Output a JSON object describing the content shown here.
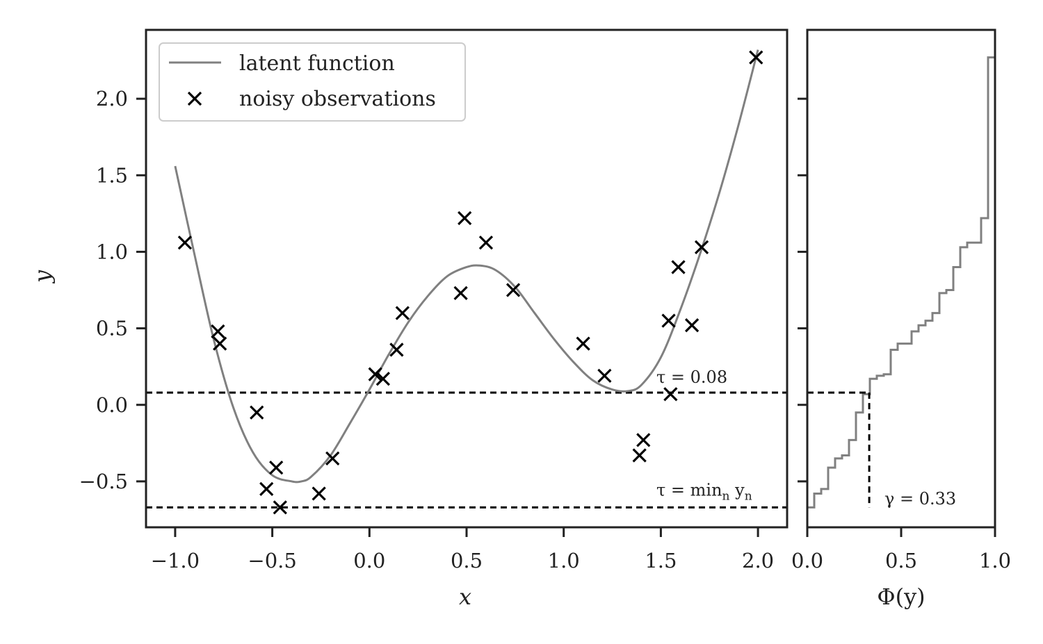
{
  "colors": {
    "latent": "#808080",
    "observations": "#000000",
    "threshold": "#000000",
    "frame": "#222222"
  },
  "chart_data": [
    {
      "type": "scatter",
      "xlabel": "x",
      "ylabel": "y",
      "xlim": [
        -1.15,
        2.15
      ],
      "ylim": [
        -0.8,
        2.45
      ],
      "xticks": [
        -1.0,
        -0.5,
        0.0,
        0.5,
        1.0,
        1.5,
        2.0
      ],
      "xtick_labels": [
        "−1.0",
        "−0.5",
        "0.0",
        "0.5",
        "1.0",
        "1.5",
        "2.0"
      ],
      "yticks": [
        -0.5,
        0.0,
        0.5,
        1.0,
        1.5,
        2.0
      ],
      "ytick_labels": [
        "−0.5",
        "0.0",
        "0.5",
        "1.0",
        "1.5",
        "2.0"
      ],
      "grid": false,
      "legend_position": "top-left",
      "series": [
        {
          "name": "latent function",
          "kind": "line",
          "x": [
            -1.0,
            -0.9,
            -0.8,
            -0.7,
            -0.6,
            -0.5,
            -0.4,
            -0.35,
            -0.3,
            -0.2,
            -0.1,
            0.0,
            0.1,
            0.2,
            0.3,
            0.4,
            0.5,
            0.57,
            0.65,
            0.75,
            0.85,
            0.95,
            1.05,
            1.15,
            1.25,
            1.33,
            1.4,
            1.5,
            1.6,
            1.7,
            1.8,
            1.9,
            2.0
          ],
          "y": [
            1.56,
            0.98,
            0.42,
            -0.02,
            -0.31,
            -0.46,
            -0.5,
            -0.5,
            -0.47,
            -0.33,
            -0.12,
            0.1,
            0.33,
            0.54,
            0.71,
            0.84,
            0.9,
            0.91,
            0.88,
            0.77,
            0.6,
            0.43,
            0.28,
            0.16,
            0.1,
            0.09,
            0.13,
            0.31,
            0.62,
            0.98,
            1.38,
            1.83,
            2.32
          ]
        },
        {
          "name": "noisy observations",
          "kind": "scatter",
          "marker": "x",
          "points": [
            [
              -0.95,
              1.06
            ],
            [
              -0.78,
              0.48
            ],
            [
              -0.77,
              0.4
            ],
            [
              -0.58,
              -0.05
            ],
            [
              -0.53,
              -0.55
            ],
            [
              -0.48,
              -0.41
            ],
            [
              -0.46,
              -0.67
            ],
            [
              -0.26,
              -0.58
            ],
            [
              -0.19,
              -0.35
            ],
            [
              0.03,
              0.2
            ],
            [
              0.07,
              0.17
            ],
            [
              0.14,
              0.36
            ],
            [
              0.17,
              0.6
            ],
            [
              0.47,
              0.73
            ],
            [
              0.49,
              1.22
            ],
            [
              0.6,
              1.06
            ],
            [
              0.74,
              0.75
            ],
            [
              1.1,
              0.4
            ],
            [
              1.21,
              0.19
            ],
            [
              1.39,
              -0.33
            ],
            [
              1.41,
              -0.23
            ],
            [
              1.54,
              0.55
            ],
            [
              1.55,
              0.07
            ],
            [
              1.59,
              0.9
            ],
            [
              1.66,
              0.52
            ],
            [
              1.71,
              1.03
            ],
            [
              1.99,
              2.27
            ]
          ]
        }
      ],
      "annotations": [
        {
          "kind": "hline",
          "y": 0.08,
          "label": "τ = 0.08"
        },
        {
          "kind": "hline",
          "y": -0.67,
          "label": "τ = min",
          "label_sub1": "n",
          "label_mid": " y",
          "label_sub2": "n"
        }
      ]
    },
    {
      "type": "line",
      "kind": "ecdf_step",
      "xlabel": "Φ(y)",
      "xlim": [
        0.0,
        1.0
      ],
      "ylim": [
        -0.8,
        2.45
      ],
      "xticks": [
        0.0,
        0.5,
        1.0
      ],
      "xtick_labels": [
        "0.0",
        "0.5",
        "1.0"
      ],
      "shares_y_with": "left panel",
      "step_y": [
        -0.67,
        -0.58,
        -0.55,
        -0.41,
        -0.35,
        -0.33,
        -0.23,
        -0.05,
        0.07,
        0.17,
        0.19,
        0.2,
        0.36,
        0.4,
        0.4,
        0.48,
        0.52,
        0.55,
        0.6,
        0.73,
        0.75,
        0.9,
        1.03,
        1.06,
        1.06,
        1.22,
        2.27
      ],
      "annotations": [
        {
          "kind": "hline",
          "y": 0.08,
          "x_end": 0.33
        },
        {
          "kind": "vline",
          "x": 0.33,
          "label": "γ = 0.33"
        }
      ]
    }
  ]
}
